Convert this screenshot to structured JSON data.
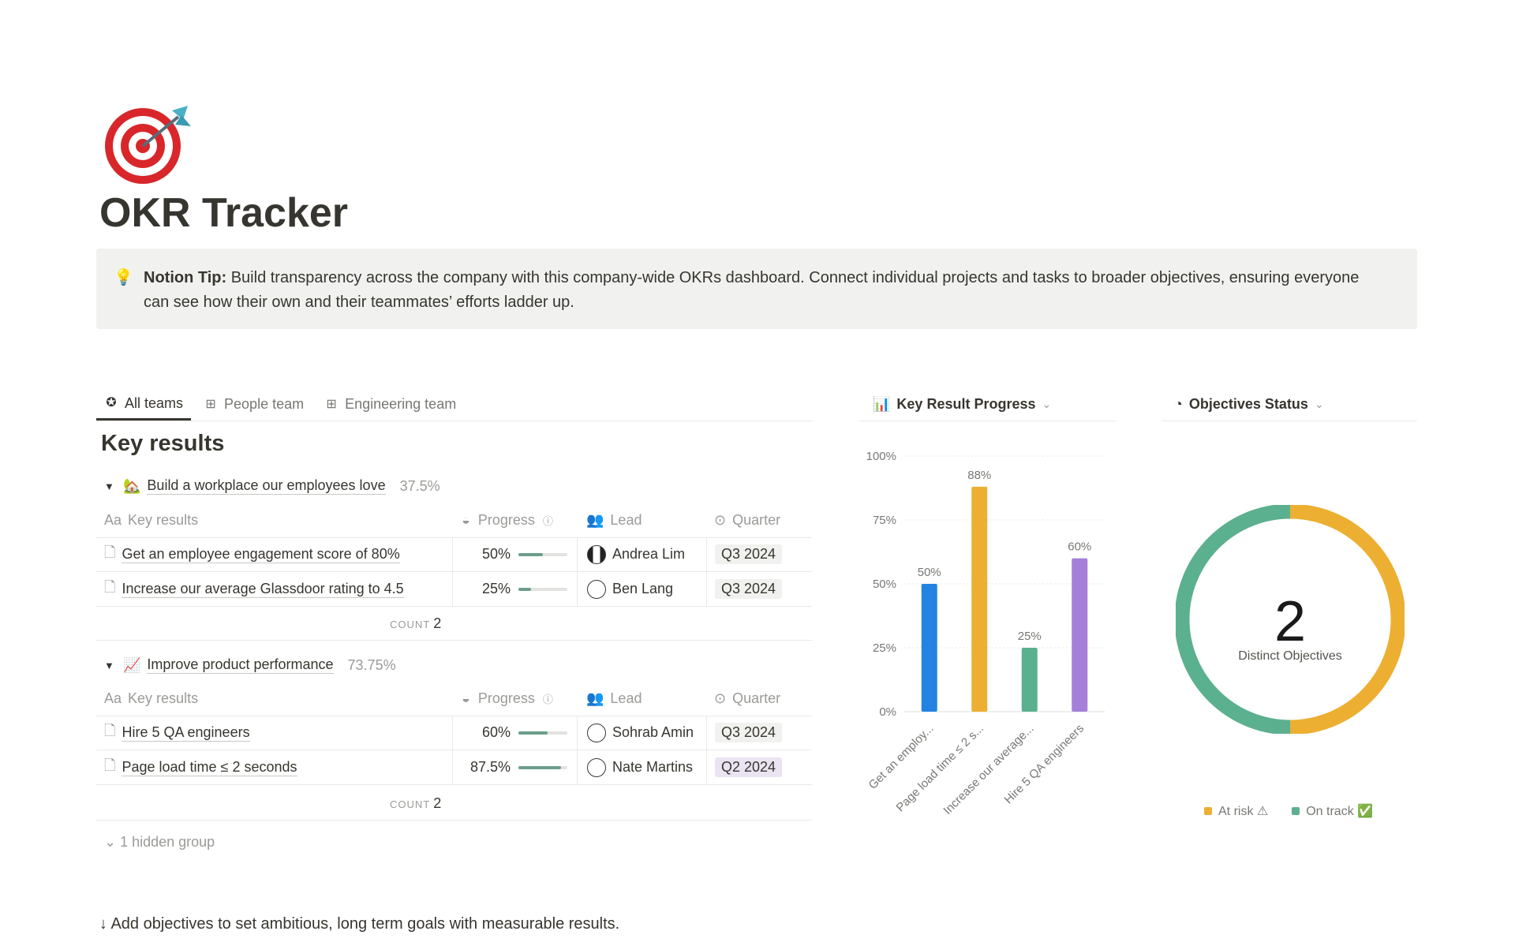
{
  "page": {
    "icon": "dart-target-icon",
    "title": "OKR Tracker",
    "callout": {
      "icon": "lightbulb-icon",
      "label": "Notion Tip:",
      "text": " Build transparency across the company with this company-wide OKRs dashboard. Connect individual projects and tasks to broader objectives, ensuring everyone can see how their own and their teammates’ efforts ladder up."
    }
  },
  "tabs": [
    {
      "label": "All teams",
      "icon": "star-circle-icon",
      "active": true
    },
    {
      "label": "People team",
      "icon": "table-icon"
    },
    {
      "label": "Engineering team",
      "icon": "table-icon"
    }
  ],
  "view_title": "Key results",
  "columns": {
    "name": "Key results",
    "name_prefix": "Aa",
    "progress": "Progress",
    "lead": "Lead",
    "quarter": "Quarter"
  },
  "groups": [
    {
      "emoji": "🏡",
      "name": "Build a workplace our employees love",
      "pct": "37.5%",
      "count_label": "COUNT",
      "count": "2",
      "rows": [
        {
          "name": "Get an employee engagement score of 80%",
          "progress": "50%",
          "progress_value": 0.5,
          "lead": "Andrea Lim",
          "quarter": "Q3 2024"
        },
        {
          "name": "Increase our average Glassdoor rating to 4.5",
          "progress": "25%",
          "progress_value": 0.25,
          "lead": "Ben Lang",
          "quarter": "Q3 2024"
        }
      ]
    },
    {
      "emoji": "📈",
      "name": "Improve product performance",
      "pct": "73.75%",
      "count_label": "COUNT",
      "count": "2",
      "rows": [
        {
          "name": "Hire 5 QA engineers",
          "progress": "60%",
          "progress_value": 0.6,
          "lead": "Sohrab Amin",
          "quarter": "Q3 2024"
        },
        {
          "name": "Page load time ≤ 2 seconds",
          "progress": "87.5%",
          "progress_value": 0.875,
          "lead": "Nate Martins",
          "quarter": "Q2 2024"
        }
      ]
    }
  ],
  "hidden_groups": "1 hidden group",
  "footer": "↓ Add objectives to set ambitious, long term goals with measurable results.",
  "chart_data": [
    {
      "type": "bar",
      "title": "Key Result Progress",
      "categories": [
        "Get an employ...",
        "Page load time ≤ 2 s...",
        "Increase our average...",
        "Hire 5 QA engineers"
      ],
      "values": [
        50,
        88,
        25,
        60
      ],
      "data_labels": [
        "50%",
        "88%",
        "25%",
        "60%"
      ],
      "colors": [
        "#2383e2",
        "#ecaf32",
        "#5bb08f",
        "#a67fdb"
      ],
      "yticks": [
        "0%",
        "25%",
        "50%",
        "75%",
        "100%"
      ],
      "ylim": [
        0,
        100
      ],
      "grid": true
    },
    {
      "type": "pie",
      "title": "Objectives Status",
      "center_value": "2",
      "center_label": "Distinct Objectives",
      "slices": [
        {
          "name": "At risk ⚠",
          "value": 1,
          "color": "#ecaf32"
        },
        {
          "name": "On track ✅",
          "value": 1,
          "color": "#5bb08f"
        }
      ],
      "legend": "bottom"
    }
  ]
}
